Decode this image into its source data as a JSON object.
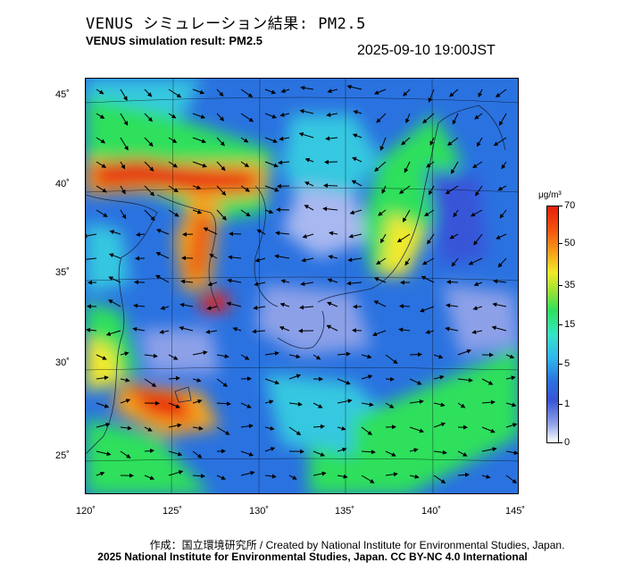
{
  "header": {
    "title_ja": "VENUS シミュレーション結果: PM2.5",
    "title_en": "VENUS simulation result: PM2.5",
    "timestamp": "2025-09-10 19:00JST"
  },
  "axes": {
    "lat_labels": [
      {
        "text": "45˚",
        "value": 45
      },
      {
        "text": "40˚",
        "value": 40
      },
      {
        "text": "35˚",
        "value": 35
      },
      {
        "text": "30˚",
        "value": 30
      },
      {
        "text": "25˚",
        "value": 25
      }
    ],
    "lon_labels": [
      {
        "text": "120˚",
        "value": 120
      },
      {
        "text": "125˚",
        "value": 125
      },
      {
        "text": "130˚",
        "value": 130
      },
      {
        "text": "135˚",
        "value": 135
      },
      {
        "text": "140˚",
        "value": 140
      },
      {
        "text": "145˚",
        "value": 145
      }
    ]
  },
  "colorbar": {
    "unit": "μg/m³",
    "ticks": [
      {
        "text": "70",
        "value": 70
      },
      {
        "text": "50",
        "value": 50
      },
      {
        "text": "35",
        "value": 35
      },
      {
        "text": "15",
        "value": 15
      },
      {
        "text": "5",
        "value": 5
      },
      {
        "text": "1",
        "value": 1
      },
      {
        "text": "0",
        "value": 0
      }
    ],
    "colors": [
      "#e81c0c",
      "#f7a41a",
      "#f3ea2a",
      "#2ee05c",
      "#34e5c4",
      "#2fb8ee",
      "#2a72e0",
      "#ffffff"
    ]
  },
  "credits": {
    "line1": "作成：国立環境研究所 / Created by National Institute for Environmental Studies, Japan.",
    "line2": "2025 National Institute for Environmental Studies, Japan. CC BY-NC 4.0 International"
  }
}
